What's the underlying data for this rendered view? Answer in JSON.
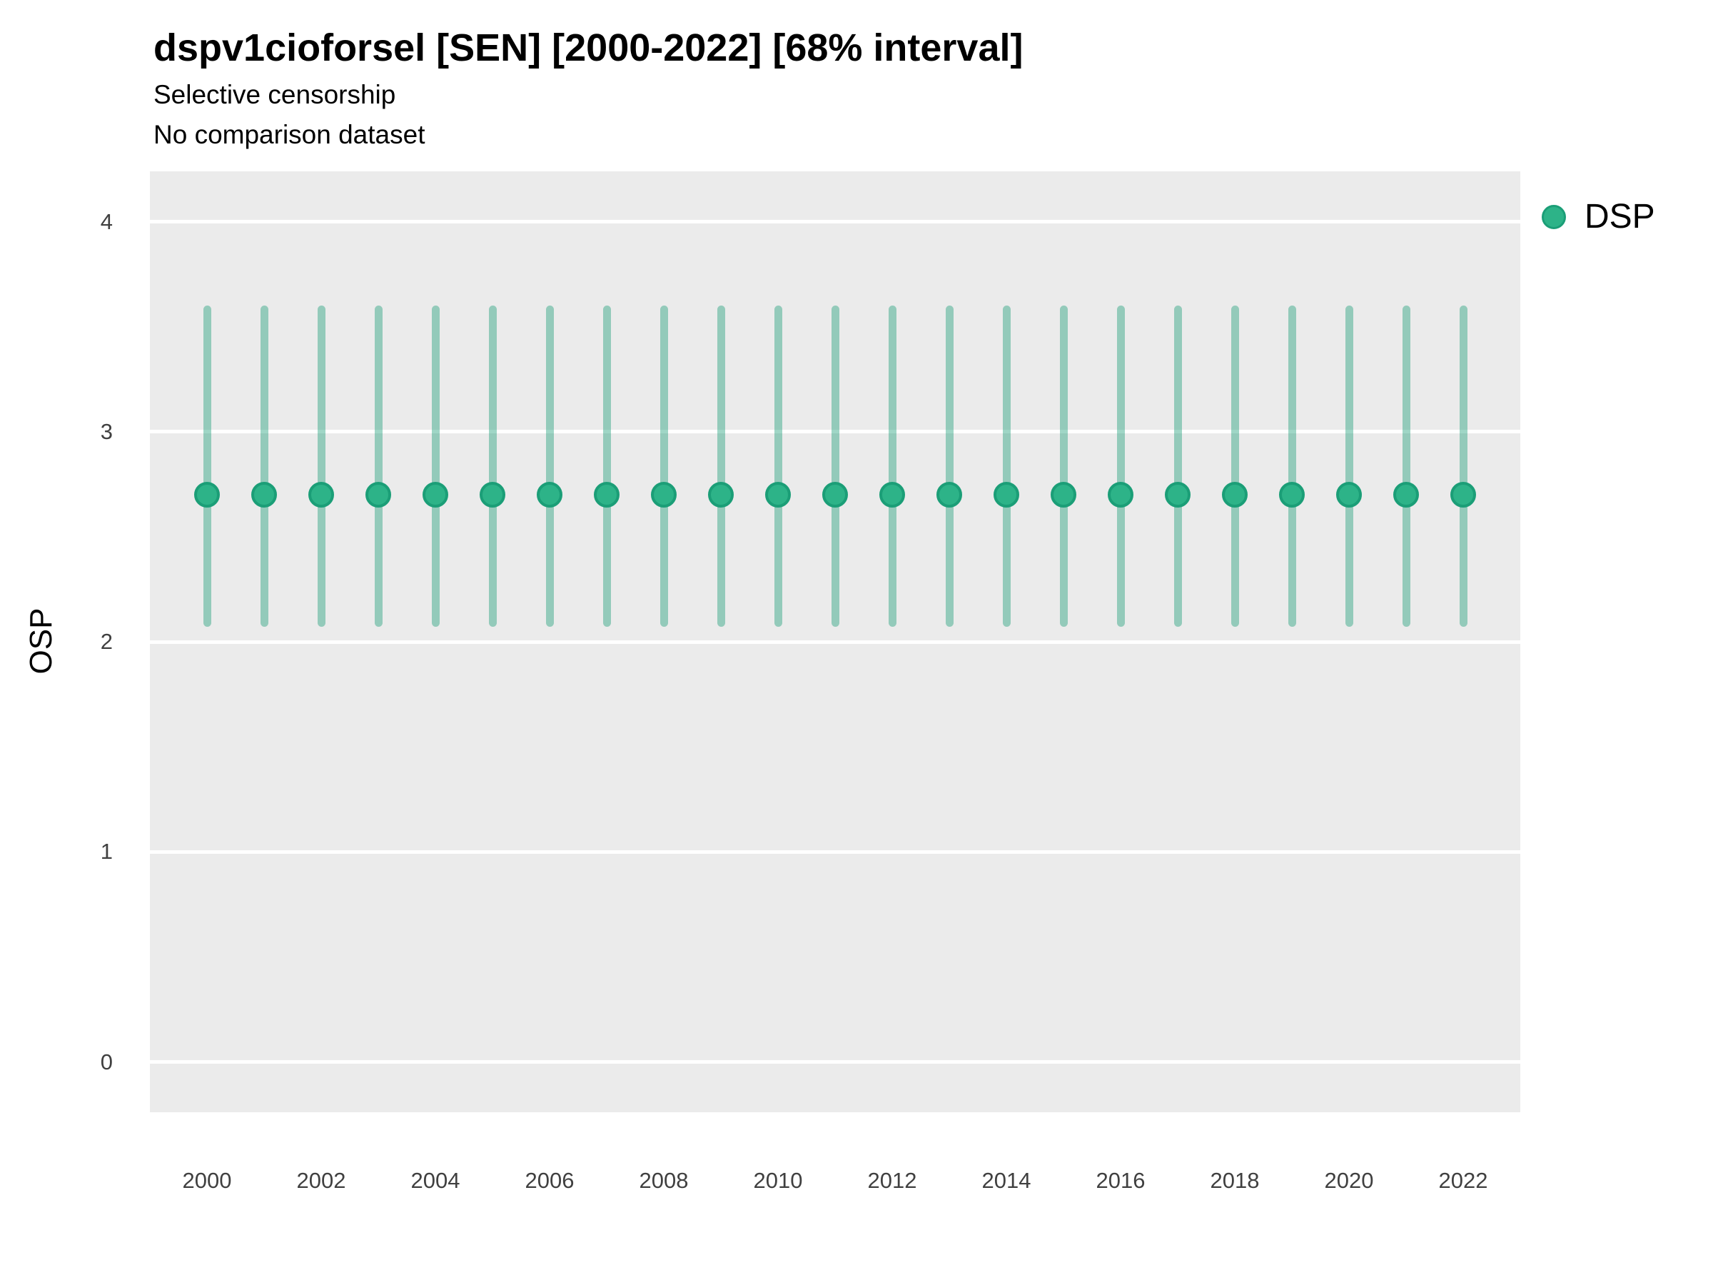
{
  "header": {
    "title": "dspv1cioforsel [SEN] [2000-2022] [68% interval]",
    "subtitle_line1": "Selective censorship",
    "subtitle_line2": "No comparison dataset"
  },
  "legend": {
    "label": "DSP",
    "marker": "circle-icon"
  },
  "colors": {
    "panel_background": "#EBEBEB",
    "gridline": "#FFFFFF",
    "point_fill": "#2DB388",
    "point_stroke": "#1B9E77",
    "interval_bar": "rgba(27,158,119,0.42)",
    "tick_label": "#404040",
    "title_text": "#000000"
  },
  "chart_data": {
    "type": "scatter",
    "subtype": "point-interval",
    "title": "dspv1cioforsel [SEN] [2000-2022] [68% interval]",
    "subtitle": [
      "Selective censorship",
      "No comparison dataset"
    ],
    "xlabel": "",
    "ylabel": "OSP",
    "interval_level": "68%",
    "ylim": [
      -0.24,
      4.24
    ],
    "xlim": [
      1999,
      2023
    ],
    "y_ticks": [
      0,
      1,
      2,
      3,
      4
    ],
    "x_tick_years": [
      2000,
      2002,
      2004,
      2006,
      2008,
      2010,
      2012,
      2014,
      2016,
      2018,
      2020,
      2022
    ],
    "grid": "major horizontal white lines on gray panel",
    "legend_position": "top-right outside panel",
    "series": [
      {
        "name": "DSP",
        "color": "#1B9E77",
        "points": [
          {
            "year": 2000,
            "estimate": 2.7,
            "lower": 2.07,
            "upper": 3.6
          },
          {
            "year": 2001,
            "estimate": 2.7,
            "lower": 2.07,
            "upper": 3.6
          },
          {
            "year": 2002,
            "estimate": 2.7,
            "lower": 2.07,
            "upper": 3.6
          },
          {
            "year": 2003,
            "estimate": 2.7,
            "lower": 2.07,
            "upper": 3.6
          },
          {
            "year": 2004,
            "estimate": 2.7,
            "lower": 2.07,
            "upper": 3.6
          },
          {
            "year": 2005,
            "estimate": 2.7,
            "lower": 2.07,
            "upper": 3.6
          },
          {
            "year": 2006,
            "estimate": 2.7,
            "lower": 2.07,
            "upper": 3.6
          },
          {
            "year": 2007,
            "estimate": 2.7,
            "lower": 2.07,
            "upper": 3.6
          },
          {
            "year": 2008,
            "estimate": 2.7,
            "lower": 2.07,
            "upper": 3.6
          },
          {
            "year": 2009,
            "estimate": 2.7,
            "lower": 2.07,
            "upper": 3.6
          },
          {
            "year": 2010,
            "estimate": 2.7,
            "lower": 2.07,
            "upper": 3.6
          },
          {
            "year": 2011,
            "estimate": 2.7,
            "lower": 2.07,
            "upper": 3.6
          },
          {
            "year": 2012,
            "estimate": 2.7,
            "lower": 2.07,
            "upper": 3.6
          },
          {
            "year": 2013,
            "estimate": 2.7,
            "lower": 2.07,
            "upper": 3.6
          },
          {
            "year": 2014,
            "estimate": 2.7,
            "lower": 2.07,
            "upper": 3.6
          },
          {
            "year": 2015,
            "estimate": 2.7,
            "lower": 2.07,
            "upper": 3.6
          },
          {
            "year": 2016,
            "estimate": 2.7,
            "lower": 2.07,
            "upper": 3.6
          },
          {
            "year": 2017,
            "estimate": 2.7,
            "lower": 2.07,
            "upper": 3.6
          },
          {
            "year": 2018,
            "estimate": 2.7,
            "lower": 2.07,
            "upper": 3.6
          },
          {
            "year": 2019,
            "estimate": 2.7,
            "lower": 2.07,
            "upper": 3.6
          },
          {
            "year": 2020,
            "estimate": 2.7,
            "lower": 2.07,
            "upper": 3.6
          },
          {
            "year": 2021,
            "estimate": 2.7,
            "lower": 2.07,
            "upper": 3.6
          },
          {
            "year": 2022,
            "estimate": 2.7,
            "lower": 2.07,
            "upper": 3.6
          }
        ]
      }
    ]
  }
}
